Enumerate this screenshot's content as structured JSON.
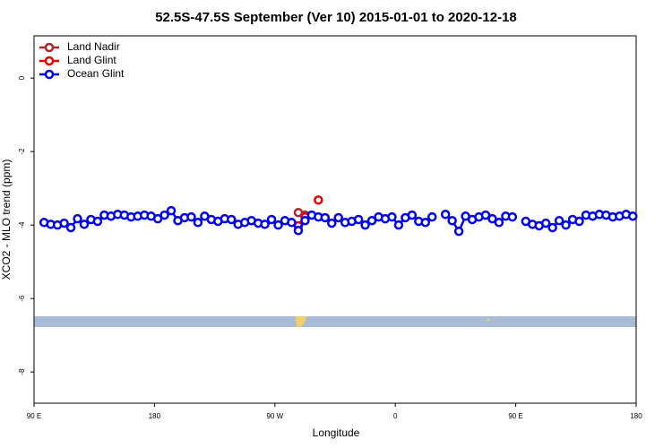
{
  "chart_data": {
    "type": "line",
    "title": "52.5S-47.5S September (Ver 10)   2015-01-01 to 2020-12-18",
    "x_label": "Longitude",
    "y_label": "XCO2 - MLO trend (ppm)",
    "xlim": [
      90,
      540
    ],
    "xticks": [
      {
        "value": 90,
        "label": "90 E"
      },
      {
        "value": 180,
        "label": "180"
      },
      {
        "value": 270,
        "label": "90 W"
      },
      {
        "value": 360,
        "label": "0"
      },
      {
        "value": 450,
        "label": "90 E"
      },
      {
        "value": 540,
        "label": "180"
      }
    ],
    "ylim": [
      -8.85,
      1.15
    ],
    "yticks": [
      0,
      -2,
      -4,
      -6,
      -8
    ],
    "legend": "top-left",
    "series": [
      {
        "name": "Land Nadir",
        "color": "#a52a2a",
        "x": [
          287.5,
          292.5
        ],
        "values": [
          -3.66,
          -3.73
        ]
      },
      {
        "name": "Land Glint",
        "color": "#ee0000",
        "x": [
          287.5,
          292.5,
          297.5,
          302.5
        ],
        "values": [
          -4.02,
          -3.78,
          null,
          -3.32
        ]
      },
      {
        "name": "Ocean Glint",
        "color": "#0000ee",
        "x": [
          97.5,
          102.5,
          107.5,
          112.5,
          117.5,
          122.5,
          127.5,
          132.5,
          137.5,
          142.5,
          147.5,
          152.5,
          157.5,
          162.5,
          167.5,
          172.5,
          177.5,
          182.5,
          187.5,
          192.5,
          197.5,
          202.5,
          207.5,
          212.5,
          217.5,
          222.5,
          227.5,
          232.5,
          237.5,
          242.5,
          247.5,
          252.5,
          257.5,
          262.5,
          267.5,
          272.5,
          277.5,
          282.5,
          287.5,
          292.5,
          297.5,
          302.5,
          307.5,
          312.5,
          317.5,
          322.5,
          327.5,
          332.5,
          337.5,
          342.5,
          347.5,
          352.5,
          357.5,
          362.5,
          367.5,
          372.5,
          377.5,
          382.5,
          387.5,
          392.5,
          397.5,
          402.5,
          407.5,
          412.5,
          417.5,
          422.5,
          427.5,
          432.5,
          437.5,
          442.5,
          447.5,
          452.5,
          457.5,
          462.5,
          467.5,
          472.5,
          477.5,
          482.5,
          487.5,
          492.5,
          497.5,
          502.5,
          507.5,
          512.5,
          517.5,
          522.5,
          527.5,
          532.5,
          537.5
        ],
        "values": [
          -3.93,
          -3.98,
          -4.0,
          -3.95,
          -4.07,
          -3.83,
          -3.98,
          -3.85,
          -3.9,
          -3.73,
          -3.76,
          -3.71,
          -3.73,
          -3.78,
          -3.76,
          -3.73,
          -3.76,
          -3.83,
          -3.73,
          -3.61,
          -3.88,
          -3.8,
          -3.78,
          -3.93,
          -3.76,
          -3.85,
          -3.9,
          -3.83,
          -3.85,
          -3.98,
          -3.93,
          -3.88,
          -3.95,
          -3.98,
          -3.85,
          -4.0,
          -3.88,
          -3.93,
          -4.15,
          -3.88,
          -3.73,
          -3.78,
          -3.8,
          -3.95,
          -3.8,
          -3.93,
          -3.9,
          -3.85,
          -4.0,
          -3.88,
          -3.78,
          -3.83,
          -3.78,
          -4.0,
          -3.8,
          -3.73,
          -3.9,
          -3.93,
          -3.78,
          null,
          -3.71,
          -3.88,
          -4.17,
          -3.76,
          -3.85,
          -3.78,
          -3.73,
          -3.83,
          -3.93,
          -3.76,
          -3.78,
          null,
          -3.9,
          -3.98,
          -4.02,
          -3.95,
          -4.07,
          -3.88,
          -4.0,
          -3.85,
          -3.9,
          -3.73,
          -3.76,
          -3.71,
          -3.73,
          -3.78,
          -3.76,
          -3.71,
          -3.76
        ]
      }
    ]
  }
}
